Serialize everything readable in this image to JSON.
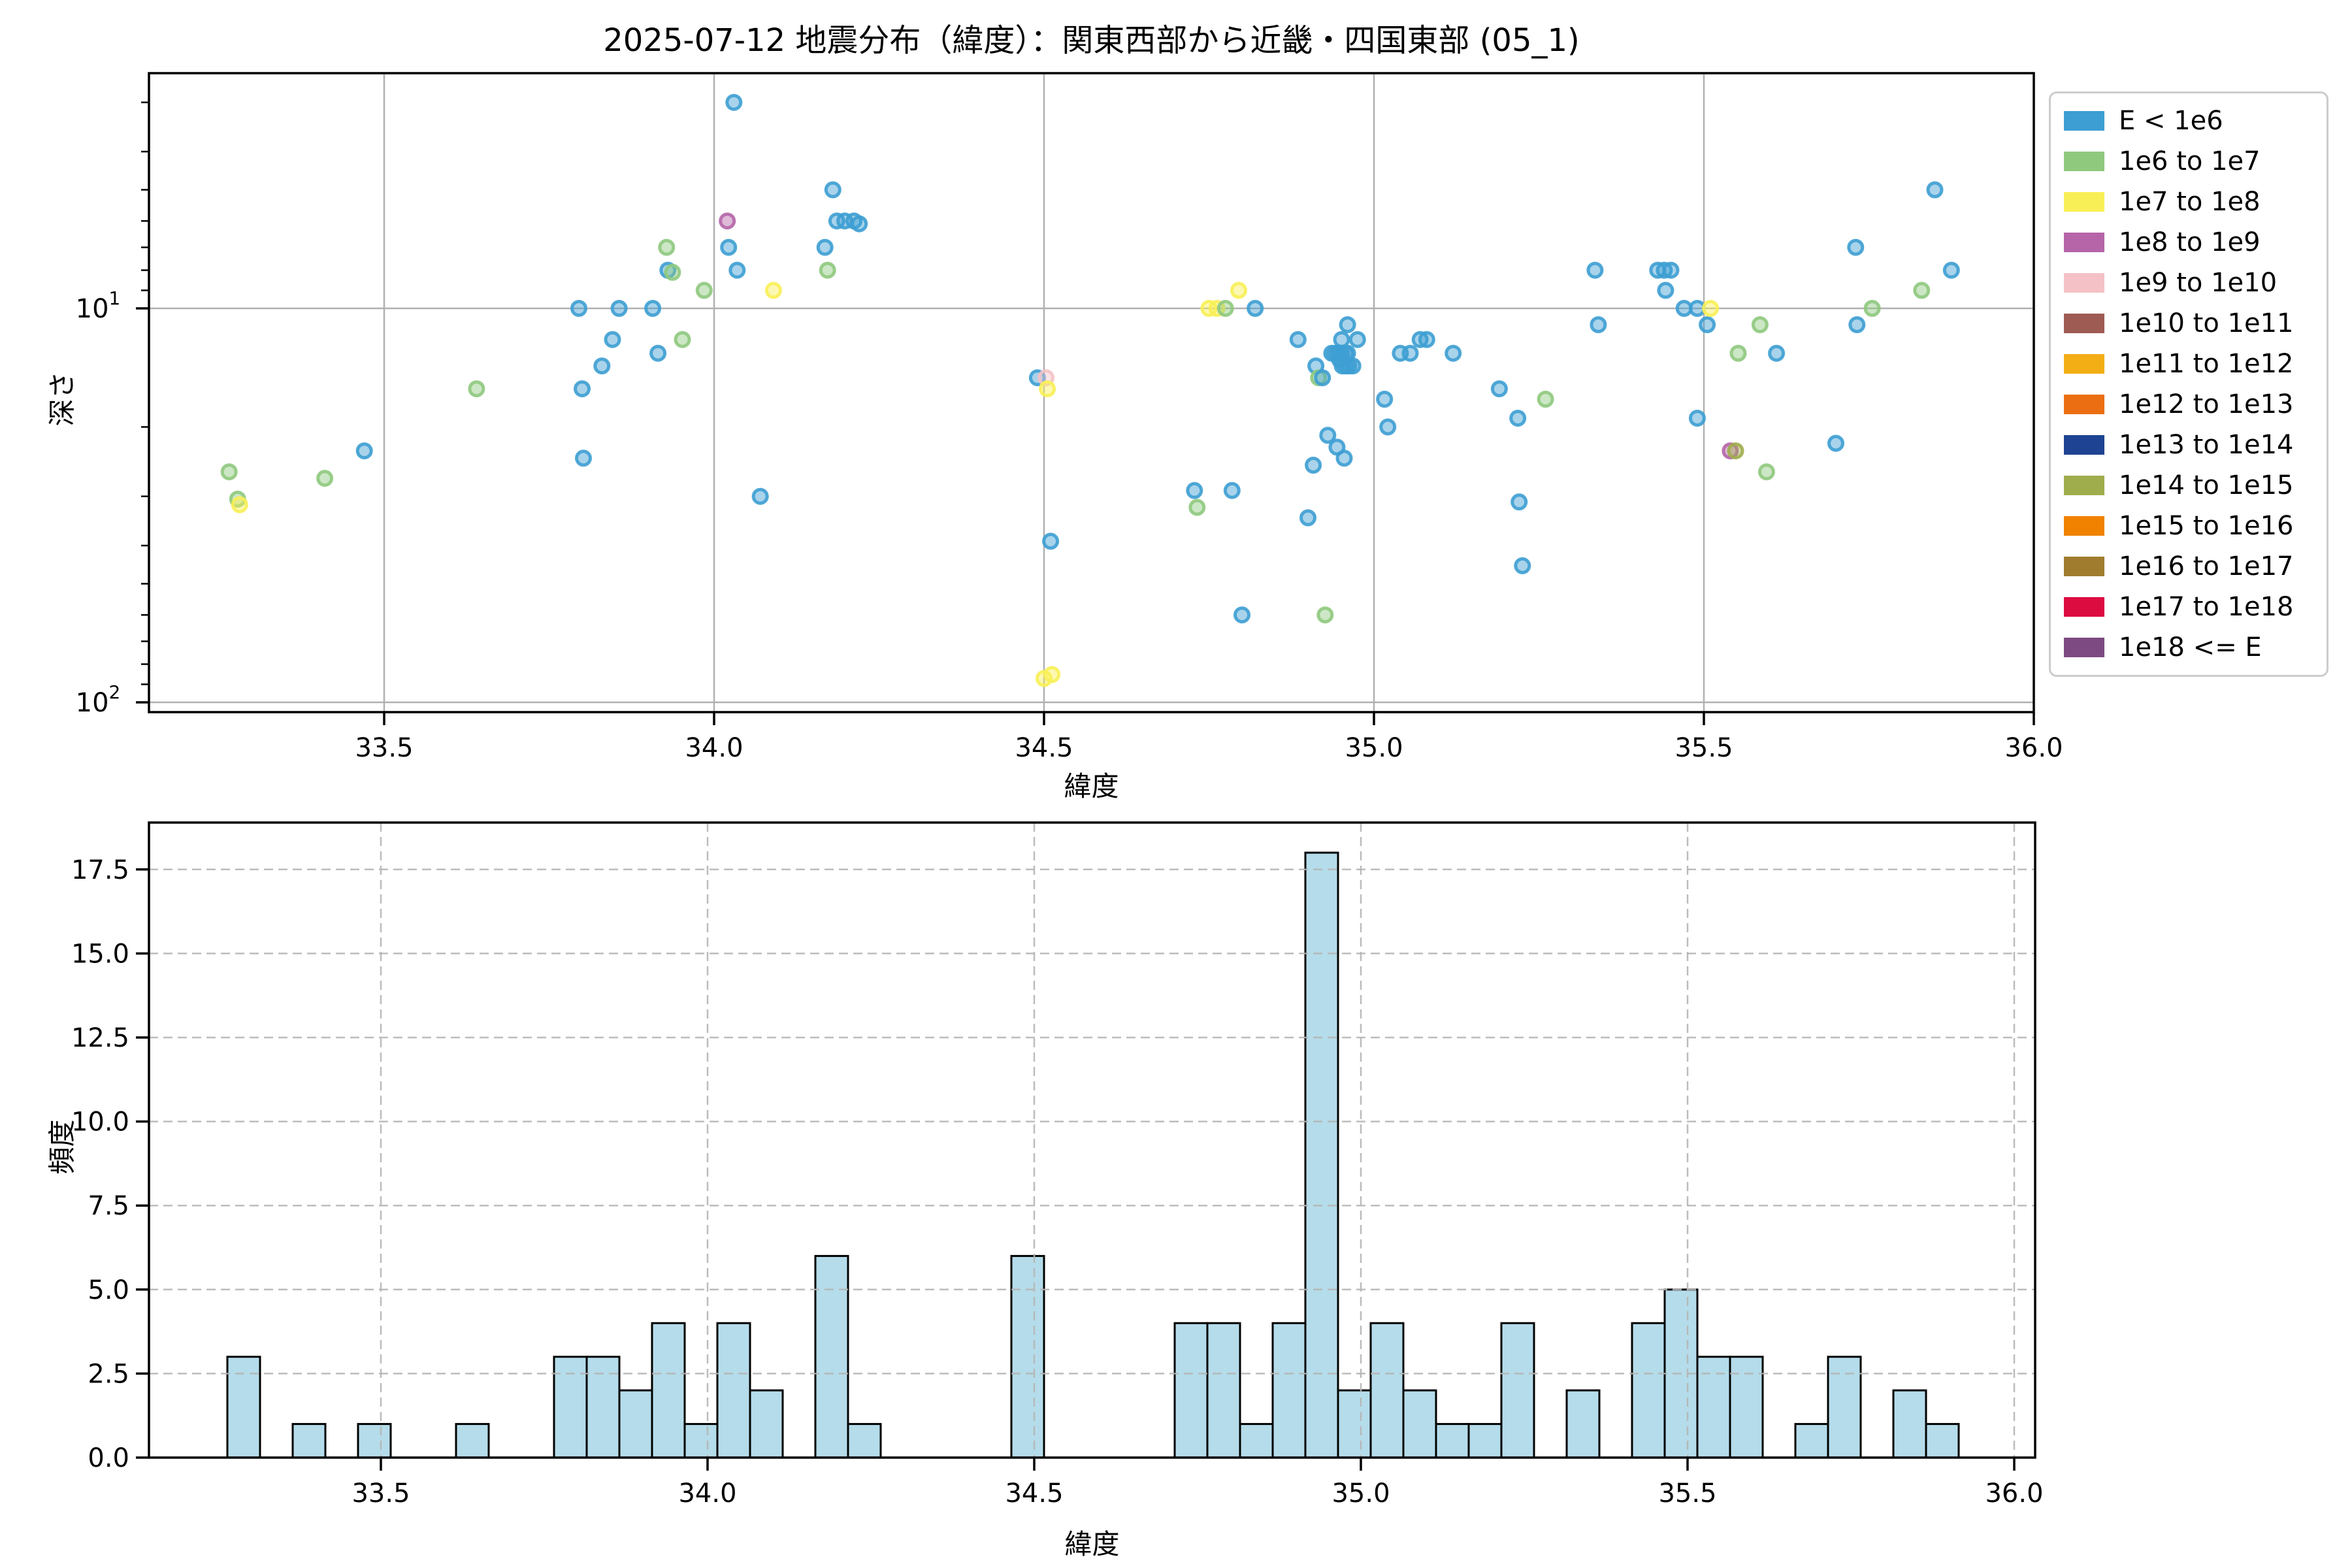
{
  "title": "2025-07-12 地震分布（緯度）：関東西部から近畿・四国東部 (05_1)",
  "colors": {
    "b": "#3d9ed3",
    "g": "#8fc97e",
    "y": "#f8ef57",
    "m": "#b565a8",
    "p": "#f4c2c6",
    "brown": "#9e5b54",
    "amber": "#f3ae16",
    "orange": "#ec6e12",
    "navy": "#1e4392",
    "o": "#a0ad4c",
    "orange2": "#f08200",
    "gold": "#a07c2e",
    "crimson": "#dc0c41",
    "purple": "#7d4a82",
    "grid_top": "#b0b0b0",
    "grid_bottom": "#b5b5b5",
    "bar_fill": "#b5dcea",
    "bar_edge": "#000000",
    "spine": "#000000",
    "legend_border": "#cccccc"
  },
  "legend": {
    "entries": [
      {
        "label": "E < 1e6",
        "key": "b"
      },
      {
        "label": "1e6 to 1e7",
        "key": "g"
      },
      {
        "label": "1e7 to 1e8",
        "key": "y"
      },
      {
        "label": "1e8 to 1e9",
        "key": "m"
      },
      {
        "label": "1e9 to 1e10",
        "key": "p"
      },
      {
        "label": "1e10 to 1e11",
        "key": "brown"
      },
      {
        "label": "1e11 to 1e12",
        "key": "amber"
      },
      {
        "label": "1e12 to 1e13",
        "key": "orange"
      },
      {
        "label": "1e13 to 1e14",
        "key": "navy"
      },
      {
        "label": "1e14 to 1e15",
        "key": "o"
      },
      {
        "label": "1e15 to 1e16",
        "key": "orange2"
      },
      {
        "label": "1e16 to 1e17",
        "key": "gold"
      },
      {
        "label": "1e17 to 1e18",
        "key": "crimson"
      },
      {
        "label": "1e18 <= E",
        "key": "purple"
      }
    ]
  },
  "chart_data": [
    {
      "type": "scatter",
      "title": "2025-07-12 地震分布（緯度）：関東西部から近畿・四国東部 (05_1)",
      "xlabel": "緯度",
      "ylabel": "深さ",
      "xlim": [
        33.144,
        36.0
      ],
      "ylim_depth_inverted": [
        2.53,
        106
      ],
      "yscale": "log",
      "grid": "solid",
      "xticks": [
        33.5,
        34.0,
        34.5,
        35.0,
        35.5,
        36.0
      ],
      "yticks": [
        10,
        100
      ],
      "yminor": [
        3,
        4,
        5,
        6,
        7,
        8,
        9,
        20,
        30,
        40,
        50,
        60,
        70,
        80,
        90
      ],
      "points": [
        [
          33.265,
          26,
          "g"
        ],
        [
          33.278,
          30.5,
          "g"
        ],
        [
          33.281,
          31.5,
          "y"
        ],
        [
          33.41,
          27,
          "g"
        ],
        [
          33.47,
          23,
          "b"
        ],
        [
          33.64,
          16,
          "g"
        ],
        [
          33.795,
          10,
          "b"
        ],
        [
          33.8,
          16,
          "b"
        ],
        [
          33.802,
          24,
          "b"
        ],
        [
          33.83,
          14,
          "b"
        ],
        [
          33.846,
          12,
          "b"
        ],
        [
          33.856,
          10,
          "b"
        ],
        [
          33.907,
          10,
          "b"
        ],
        [
          33.915,
          13,
          "b"
        ],
        [
          33.928,
          7,
          "g"
        ],
        [
          33.93,
          8,
          "b"
        ],
        [
          33.937,
          8.1,
          "g"
        ],
        [
          33.952,
          12,
          "g"
        ],
        [
          33.985,
          9,
          "g"
        ],
        [
          34.02,
          6,
          "m"
        ],
        [
          34.022,
          7,
          "b"
        ],
        [
          34.03,
          3,
          "b"
        ],
        [
          34.035,
          8,
          "b"
        ],
        [
          34.07,
          30,
          "b"
        ],
        [
          34.09,
          9,
          "y"
        ],
        [
          34.168,
          7,
          "b"
        ],
        [
          34.172,
          8,
          "g"
        ],
        [
          34.18,
          5,
          "b"
        ],
        [
          34.186,
          6,
          "b"
        ],
        [
          34.198,
          6,
          "b"
        ],
        [
          34.212,
          6,
          "b"
        ],
        [
          34.22,
          6.1,
          "b"
        ],
        [
          34.49,
          15,
          "b"
        ],
        [
          34.503,
          15,
          "p"
        ],
        [
          34.505,
          16,
          "y"
        ],
        [
          34.51,
          39,
          "b"
        ],
        [
          34.5,
          87,
          "y"
        ],
        [
          34.512,
          85,
          "y"
        ],
        [
          34.728,
          29,
          "b"
        ],
        [
          34.732,
          32,
          "g"
        ],
        [
          34.75,
          10,
          "y"
        ],
        [
          34.762,
          10,
          "y"
        ],
        [
          34.775,
          10,
          "g"
        ],
        [
          34.785,
          29,
          "b"
        ],
        [
          34.795,
          9,
          "y"
        ],
        [
          34.8,
          60,
          "b"
        ],
        [
          34.82,
          10,
          "b"
        ],
        [
          34.885,
          12,
          "b"
        ],
        [
          34.9,
          34,
          "b"
        ],
        [
          34.908,
          25,
          "b"
        ],
        [
          34.912,
          14,
          "b"
        ],
        [
          34.916,
          15,
          "g"
        ],
        [
          34.922,
          15,
          "b"
        ],
        [
          34.926,
          60,
          "g"
        ],
        [
          34.93,
          21,
          "b"
        ],
        [
          34.936,
          13,
          "b"
        ],
        [
          34.941,
          13,
          "b"
        ],
        [
          34.944,
          22.5,
          "b"
        ],
        [
          34.946,
          13,
          "b"
        ],
        [
          34.948,
          13.5,
          "b"
        ],
        [
          34.951,
          12,
          "b"
        ],
        [
          34.951,
          13,
          "b"
        ],
        [
          34.955,
          24,
          "b"
        ],
        [
          34.957,
          13,
          "b"
        ],
        [
          34.96,
          11,
          "b"
        ],
        [
          34.96,
          13,
          "b"
        ],
        [
          34.952,
          14,
          "b"
        ],
        [
          34.957,
          14,
          "b"
        ],
        [
          34.962,
          14,
          "b"
        ],
        [
          34.968,
          14,
          "b"
        ],
        [
          34.975,
          12,
          "b"
        ],
        [
          35.016,
          17,
          "b"
        ],
        [
          35.021,
          20,
          "b"
        ],
        [
          35.04,
          13,
          "b"
        ],
        [
          35.055,
          13,
          "b"
        ],
        [
          35.07,
          12,
          "b"
        ],
        [
          35.08,
          12,
          "b"
        ],
        [
          35.12,
          13,
          "b"
        ],
        [
          35.19,
          16,
          "b"
        ],
        [
          35.218,
          19,
          "b"
        ],
        [
          35.22,
          31,
          "b"
        ],
        [
          35.225,
          45,
          "b"
        ],
        [
          35.26,
          17,
          "g"
        ],
        [
          35.335,
          8,
          "b"
        ],
        [
          35.34,
          11,
          "b"
        ],
        [
          35.43,
          8,
          "b"
        ],
        [
          35.44,
          8,
          "b"
        ],
        [
          35.45,
          8,
          "b"
        ],
        [
          35.442,
          9,
          "b"
        ],
        [
          35.47,
          10,
          "b"
        ],
        [
          35.49,
          10,
          "b"
        ],
        [
          35.505,
          11,
          "b"
        ],
        [
          35.51,
          10,
          "y"
        ],
        [
          35.49,
          19,
          "b"
        ],
        [
          35.54,
          23,
          "m"
        ],
        [
          35.548,
          23,
          "o"
        ],
        [
          35.552,
          13,
          "g"
        ],
        [
          35.585,
          11,
          "g"
        ],
        [
          35.595,
          26,
          "g"
        ],
        [
          35.61,
          13,
          "b"
        ],
        [
          35.7,
          22,
          "b"
        ],
        [
          35.73,
          7,
          "b"
        ],
        [
          35.732,
          11,
          "b"
        ],
        [
          35.755,
          10,
          "g"
        ],
        [
          35.83,
          9,
          "g"
        ],
        [
          35.85,
          5,
          "b"
        ],
        [
          35.875,
          8,
          "b"
        ]
      ]
    },
    {
      "type": "bar",
      "xlabel": "緯度",
      "ylabel": "頻度",
      "xlim": [
        33.145,
        36.032
      ],
      "ylim": [
        0,
        18.9
      ],
      "grid": "dashed",
      "bin_start": 33.265,
      "bin_width": 0.05,
      "counts": [
        3,
        0,
        1,
        0,
        1,
        0,
        0,
        1,
        0,
        0,
        3,
        3,
        2,
        4,
        1,
        4,
        2,
        0,
        6,
        1,
        0,
        0,
        0,
        0,
        6,
        0,
        0,
        0,
        0,
        4,
        4,
        1,
        4,
        18,
        2,
        4,
        2,
        1,
        1,
        4,
        0,
        2,
        0,
        4,
        5,
        3,
        3,
        0,
        1,
        3,
        0,
        2,
        1
      ],
      "xticks": [
        33.5,
        34.0,
        34.5,
        35.0,
        35.5,
        36.0
      ],
      "yticks": [
        0.0,
        2.5,
        5.0,
        7.5,
        10.0,
        12.5,
        15.0,
        17.5
      ]
    }
  ]
}
